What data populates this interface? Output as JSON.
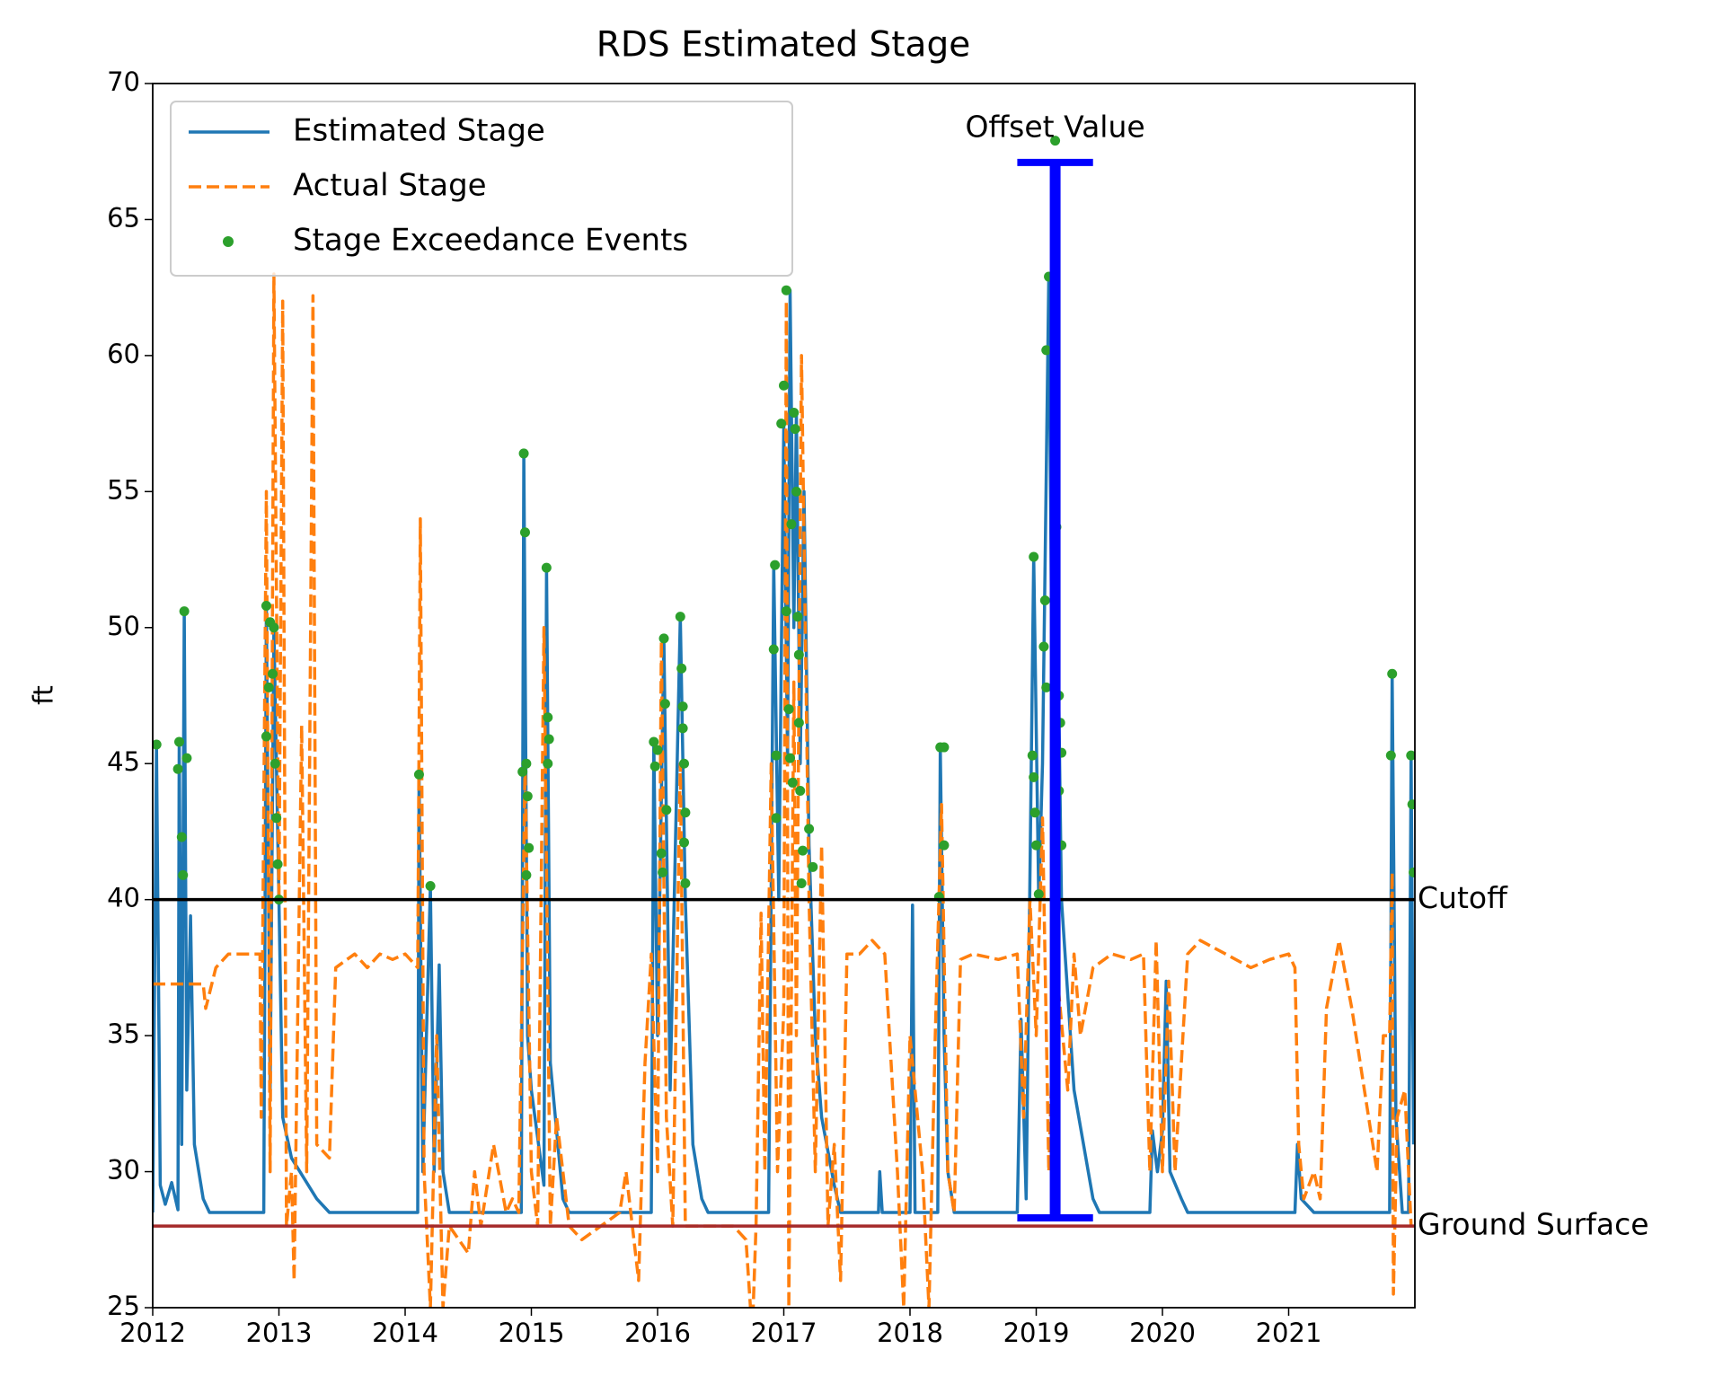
{
  "chart_data": {
    "type": "line",
    "title": "RDS Estimated Stage",
    "y_label": "ft",
    "xlim": [
      2012,
      2022
    ],
    "xticks": [
      2012,
      2013,
      2014,
      2015,
      2016,
      2017,
      2018,
      2019,
      2020,
      2021
    ],
    "ylim": [
      25,
      70
    ],
    "yticks": [
      25,
      30,
      35,
      40,
      45,
      50,
      55,
      60,
      65,
      70
    ],
    "grid": false,
    "legend": "upper left",
    "series": [
      {
        "name": "Estimated Stage",
        "color": "#1f77b4",
        "linestyle": "solid",
        "x": [
          2012.0,
          2012.03,
          2012.06,
          2012.1,
          2012.15,
          2012.2,
          2012.21,
          2012.23,
          2012.25,
          2012.27,
          2012.3,
          2012.33,
          2012.4,
          2012.45,
          2012.88,
          2012.9,
          2012.93,
          2012.96,
          2013.0,
          2013.03,
          2013.1,
          2013.3,
          2013.4,
          2014.1,
          2014.11,
          2014.14,
          2014.2,
          2014.23,
          2014.27,
          2014.3,
          2014.35,
          2014.92,
          2014.94,
          2014.97,
          2015.0,
          2015.1,
          2015.12,
          2015.15,
          2015.25,
          2015.3,
          2015.95,
          2015.97,
          2016.0,
          2016.05,
          2016.1,
          2016.18,
          2016.22,
          2016.28,
          2016.35,
          2016.4,
          2016.88,
          2016.92,
          2016.96,
          2017.0,
          2017.03,
          2017.05,
          2017.08,
          2017.1,
          2017.13,
          2017.16,
          2017.2,
          2017.25,
          2017.3,
          2017.4,
          2017.45,
          2017.75,
          2017.76,
          2017.78,
          2018.0,
          2018.02,
          2018.04,
          2018.22,
          2018.24,
          2018.27,
          2018.3,
          2018.35,
          2018.85,
          2018.88,
          2018.92,
          2018.98,
          2019.02,
          2019.05,
          2019.1,
          2019.13,
          2019.16,
          2019.2,
          2019.3,
          2019.45,
          2019.5,
          2019.9,
          2019.92,
          2019.96,
          2020.0,
          2020.03,
          2020.06,
          2020.15,
          2020.2,
          2021.05,
          2021.07,
          2021.1,
          2021.2,
          2021.8,
          2021.82,
          2021.85,
          2021.9,
          2021.95,
          2021.97,
          2021.99
        ],
        "values": [
          28.5,
          45.7,
          29.5,
          28.8,
          29.6,
          28.6,
          45.8,
          31,
          50.6,
          33,
          39.4,
          31,
          29,
          28.5,
          28.5,
          50.8,
          33,
          50,
          40,
          32,
          30.5,
          29,
          28.5,
          28.5,
          44.6,
          30,
          40.5,
          30,
          37.6,
          30,
          28.5,
          28.5,
          56.4,
          35,
          33,
          29.5,
          52.2,
          34,
          29,
          28.5,
          28.5,
          45.8,
          35,
          49.6,
          33,
          50.4,
          40,
          31,
          29,
          28.5,
          28.5,
          52.3,
          40,
          57.5,
          45,
          62.4,
          50,
          57.9,
          45,
          55,
          42,
          35,
          32,
          29.5,
          28.5,
          28.5,
          30,
          28.5,
          28.5,
          39.8,
          28.5,
          28.5,
          45.6,
          35,
          30,
          28.5,
          28.5,
          35.6,
          29,
          52.6,
          40,
          45,
          62.9,
          45,
          53.7,
          40,
          33,
          29,
          28.5,
          28.5,
          31.5,
          30,
          31.5,
          37,
          30,
          29,
          28.5,
          28.5,
          31,
          29,
          28.5,
          28.5,
          48.3,
          32,
          28.5,
          28.5,
          45.3,
          31
        ]
      },
      {
        "name": "Actual Stage",
        "color": "#ff7f0e",
        "linestyle": "dashed",
        "x": [
          2012.0,
          2012.4,
          2012.42,
          2012.5,
          2012.6,
          2012.85,
          2012.86,
          2012.9,
          2012.93,
          2012.96,
          2013.0,
          2013.03,
          2013.06,
          2013.1,
          2013.12,
          2013.18,
          2013.22,
          2013.27,
          2013.3,
          2013.4,
          2013.45,
          2013.6,
          2013.7,
          2013.8,
          2013.9,
          2014.0,
          2014.1,
          2014.12,
          2014.15,
          2014.2,
          2014.25,
          2014.3,
          2014.35,
          2014.5,
          2014.55,
          2014.6,
          2014.7,
          2014.8,
          2014.85,
          2014.9,
          2014.95,
          2015.0,
          2015.05,
          2015.1,
          2015.15,
          2015.2,
          2015.3,
          2015.4,
          2015.7,
          2015.75,
          2015.8,
          2015.85,
          2015.9,
          2015.95,
          2016.0,
          2016.03,
          2016.07,
          2016.12,
          2016.18,
          2016.22,
          2016.4,
          2016.6,
          2016.7,
          2016.75,
          2016.78,
          2016.82,
          2016.85,
          2016.9,
          2016.95,
          2017.0,
          2017.02,
          2017.04,
          2017.08,
          2017.1,
          2017.14,
          2017.2,
          2017.25,
          2017.3,
          2017.35,
          2017.4,
          2017.45,
          2017.5,
          2017.6,
          2017.7,
          2017.8,
          2017.9,
          2017.95,
          2018.0,
          2018.1,
          2018.15,
          2018.2,
          2018.25,
          2018.3,
          2018.35,
          2018.4,
          2018.5,
          2018.7,
          2018.85,
          2018.9,
          2018.95,
          2019.0,
          2019.05,
          2019.1,
          2019.15,
          2019.25,
          2019.3,
          2019.35,
          2019.45,
          2019.6,
          2019.75,
          2019.85,
          2019.9,
          2019.95,
          2020.0,
          2020.05,
          2020.1,
          2020.2,
          2020.3,
          2020.5,
          2020.7,
          2020.85,
          2021.0,
          2021.05,
          2021.08,
          2021.12,
          2021.2,
          2021.25,
          2021.3,
          2021.4,
          2021.5,
          2021.6,
          2021.7,
          2021.75,
          2021.8,
          2021.82,
          2021.83,
          2021.86,
          2021.92,
          2021.97
        ],
        "values": [
          36.9,
          36.9,
          36,
          37.5,
          38,
          38,
          32,
          55,
          30,
          63,
          40,
          62,
          28,
          30,
          26,
          46.4,
          30,
          62.2,
          31,
          30.5,
          37.5,
          38,
          37.5,
          38,
          37.8,
          38,
          37.5,
          54,
          30,
          25,
          35,
          25,
          28,
          27,
          30,
          28,
          31,
          28.5,
          29,
          28.5,
          45,
          30,
          28,
          50,
          28,
          32,
          28,
          27.5,
          28.5,
          30,
          28,
          26,
          34,
          38,
          30,
          49.5,
          32,
          28,
          45,
          28,
          28,
          28,
          27.5,
          24,
          28,
          39.5,
          30,
          45,
          30,
          36,
          62,
          25,
          48,
          35,
          60,
          40,
          30,
          42,
          28,
          31,
          26,
          38,
          38,
          38.5,
          38,
          30,
          25,
          35,
          30,
          25,
          35,
          43.5,
          30,
          28.5,
          37.8,
          38,
          37.8,
          38,
          32,
          40,
          35,
          43,
          30,
          38,
          33,
          38,
          35,
          37.5,
          38,
          37.8,
          38,
          30,
          38.5,
          30,
          37,
          30,
          38,
          38.5,
          38,
          37.5,
          37.8,
          38,
          37.5,
          31,
          29,
          30,
          29,
          36,
          38.5,
          36,
          33,
          30,
          35,
          35,
          41,
          25.5,
          32,
          33,
          28
        ]
      },
      {
        "name": "Stage Exceedance Events",
        "color": "#2ca02c",
        "linestyle": "none",
        "x": [
          2012.03,
          2012.2,
          2012.21,
          2012.23,
          2012.24,
          2012.25,
          2012.27,
          2012.9,
          2012.9,
          2012.92,
          2012.93,
          2012.95,
          2012.96,
          2012.97,
          2012.98,
          2012.99,
          2013.0,
          2014.11,
          2014.2,
          2014.93,
          2014.94,
          2014.95,
          2014.96,
          2014.97,
          2014.98,
          2014.96,
          2015.12,
          2015.13,
          2015.14,
          2015.13,
          2015.97,
          2015.98,
          2016.0,
          2016.03,
          2016.04,
          2016.05,
          2016.06,
          2016.07,
          2016.18,
          2016.19,
          2016.2,
          2016.2,
          2016.21,
          2016.22,
          2016.21,
          2016.22,
          2016.93,
          2016.92,
          2016.94,
          2016.94,
          2016.98,
          2017.0,
          2017.02,
          2017.02,
          2017.04,
          2017.05,
          2017.06,
          2017.07,
          2017.08,
          2017.09,
          2017.1,
          2017.11,
          2017.12,
          2017.12,
          2017.13,
          2017.15,
          2017.2,
          2017.23,
          2017.14,
          2018.23,
          2018.24,
          2018.27,
          2018.27,
          2018.98,
          2018.97,
          2018.98,
          2018.99,
          2019.0,
          2019.02,
          2019.06,
          2019.08,
          2019.1,
          2019.08,
          2019.15,
          2019.16,
          2019.18,
          2019.19,
          2019.2,
          2019.18,
          2019.2,
          2019.07,
          2021.82,
          2021.81,
          2021.97,
          2021.98,
          2021.99
        ],
        "values": [
          45.7,
          44.8,
          45.8,
          42.3,
          40.9,
          50.6,
          45.2,
          50.8,
          46,
          47.8,
          50.2,
          48.3,
          50,
          45,
          43,
          41.3,
          40.0,
          44.6,
          40.5,
          44.7,
          56.4,
          53.5,
          45,
          43.8,
          41.9,
          40.9,
          52.2,
          46.7,
          45.9,
          45.0,
          45.8,
          44.9,
          45.5,
          41.7,
          41.0,
          49.6,
          47.2,
          43.3,
          50.4,
          48.5,
          47.1,
          46.3,
          45,
          43.2,
          42.1,
          40.6,
          52.3,
          49.2,
          45.3,
          43,
          57.5,
          58.9,
          62.4,
          50.6,
          47,
          45.2,
          53.8,
          44.3,
          57.9,
          57.3,
          55,
          50.4,
          49.0,
          46.5,
          44,
          41.8,
          42.6,
          41.2,
          40.6,
          40.1,
          45.6,
          45.6,
          42.0,
          52.6,
          45.3,
          44.5,
          43.2,
          42,
          40.2,
          49.3,
          47.8,
          62.9,
          60.2,
          67.9,
          53.7,
          47.5,
          46.5,
          45.4,
          44,
          42,
          51,
          48.3,
          45.3,
          45.3,
          43.5,
          41.0
        ]
      }
    ],
    "hlines": [
      {
        "label": "Cutoff",
        "value": 40,
        "color": "#000000"
      },
      {
        "label": "Ground Surface",
        "value": 28,
        "color": "#a52a2a"
      }
    ],
    "offset": {
      "label": "Offset Value",
      "x": 2019.15,
      "low": 28.3,
      "high": 67.1,
      "color": "#0000ff"
    }
  }
}
